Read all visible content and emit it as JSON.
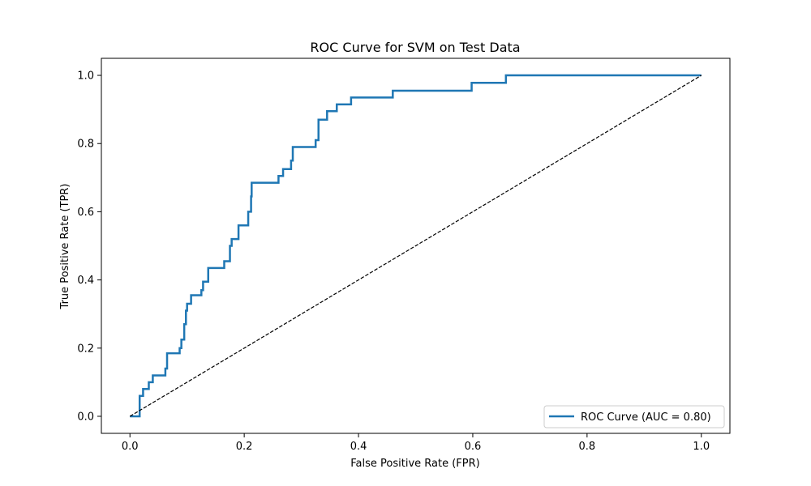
{
  "chart_data": {
    "type": "line",
    "title": "ROC Curve for SVM on Test Data",
    "xlabel": "False Positive Rate (FPR)",
    "ylabel": "True Positive Rate (TPR)",
    "xlim": [
      -0.05,
      1.05
    ],
    "ylim": [
      -0.05,
      1.05
    ],
    "xticks": [
      0.0,
      0.2,
      0.4,
      0.6,
      0.8,
      1.0
    ],
    "yticks": [
      0.0,
      0.2,
      0.4,
      0.6,
      0.8,
      1.0
    ],
    "xtick_labels": [
      "0.0",
      "0.2",
      "0.4",
      "0.6",
      "0.8",
      "1.0"
    ],
    "ytick_labels": [
      "0.0",
      "0.2",
      "0.4",
      "0.6",
      "0.8",
      "1.0"
    ],
    "grid": false,
    "legend_position": "lower-right",
    "series": [
      {
        "name": "ROC Curve (AUC = 0.80)",
        "color": "#1f77b4",
        "style": "solid",
        "x": [
          0.0,
          0.017,
          0.017,
          0.017,
          0.023,
          0.023,
          0.033,
          0.033,
          0.04,
          0.04,
          0.04,
          0.062,
          0.062,
          0.065,
          0.065,
          0.065,
          0.087,
          0.087,
          0.09,
          0.09,
          0.095,
          0.095,
          0.098,
          0.098,
          0.1,
          0.1,
          0.107,
          0.107,
          0.125,
          0.125,
          0.128,
          0.128,
          0.137,
          0.137,
          0.165,
          0.165,
          0.175,
          0.175,
          0.178,
          0.178,
          0.19,
          0.19,
          0.192,
          0.192,
          0.207,
          0.207,
          0.212,
          0.212,
          0.213,
          0.213,
          0.26,
          0.26,
          0.268,
          0.268,
          0.282,
          0.282,
          0.285,
          0.285,
          0.325,
          0.325,
          0.33,
          0.33,
          0.345,
          0.345,
          0.362,
          0.362,
          0.387,
          0.387,
          0.46,
          0.46,
          0.598,
          0.598,
          0.658,
          0.658,
          1.0
        ],
        "y": [
          0.0,
          0.0,
          0.04,
          0.06,
          0.06,
          0.08,
          0.08,
          0.1,
          0.1,
          0.12,
          0.12,
          0.12,
          0.14,
          0.14,
          0.16,
          0.185,
          0.185,
          0.2,
          0.2,
          0.225,
          0.225,
          0.27,
          0.27,
          0.31,
          0.31,
          0.33,
          0.33,
          0.355,
          0.355,
          0.37,
          0.37,
          0.395,
          0.395,
          0.435,
          0.435,
          0.455,
          0.455,
          0.5,
          0.5,
          0.52,
          0.52,
          0.56,
          0.56,
          0.56,
          0.56,
          0.6,
          0.6,
          0.645,
          0.645,
          0.685,
          0.685,
          0.705,
          0.705,
          0.725,
          0.725,
          0.75,
          0.75,
          0.79,
          0.79,
          0.81,
          0.81,
          0.87,
          0.87,
          0.895,
          0.895,
          0.915,
          0.915,
          0.935,
          0.935,
          0.955,
          0.955,
          0.978,
          0.978,
          1.0,
          1.0
        ]
      },
      {
        "name": "",
        "color": "#000000",
        "style": "dashed",
        "x": [
          0.0,
          1.0
        ],
        "y": [
          0.0,
          1.0
        ]
      }
    ]
  }
}
